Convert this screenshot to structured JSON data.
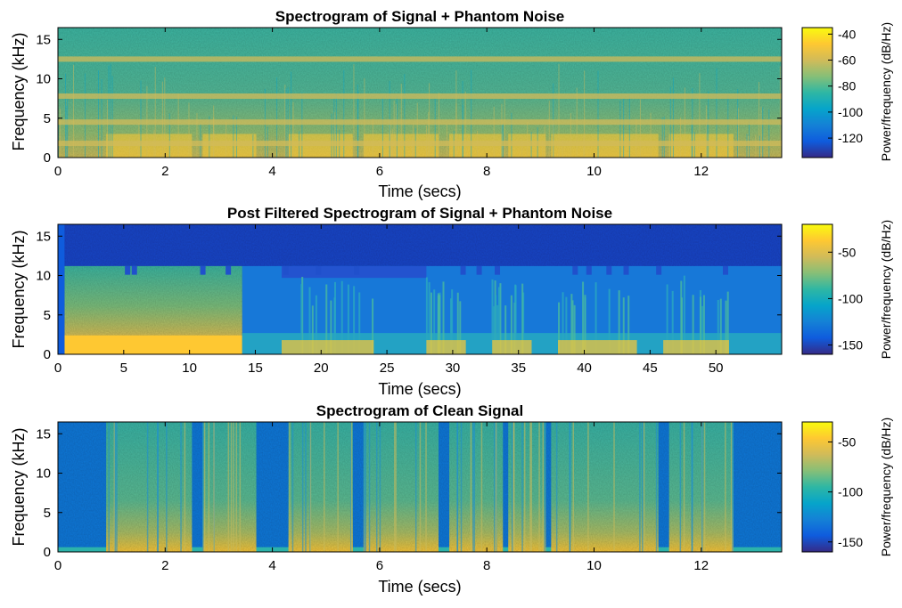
{
  "chart_data": [
    {
      "type": "heatmap",
      "title": "Spectrogram of Signal + Phantom Noise",
      "xlabel": "Time (secs)",
      "ylabel": "Frequency (kHz)",
      "xlim": [
        0,
        13.5
      ],
      "ylim": [
        0,
        16.5
      ],
      "xticks": [
        0,
        2,
        4,
        6,
        8,
        10,
        12
      ],
      "yticks": [
        0,
        5,
        10,
        15
      ],
      "colorbar": {
        "label": "Power/frequency (dB/Hz)",
        "range": [
          -135,
          -35
        ],
        "ticks": [
          -40,
          -60,
          -80,
          -100,
          -120
        ]
      },
      "noise_bands_khz": [
        1.8,
        4.5,
        7.8,
        12.5
      ],
      "speech_segments_secs": [
        [
          0.9,
          2.5
        ],
        [
          2.7,
          3.7
        ],
        [
          4.3,
          5.5
        ],
        [
          5.7,
          7.1
        ],
        [
          7.3,
          8.3
        ],
        [
          8.4,
          9.1
        ],
        [
          9.2,
          11.2
        ],
        [
          11.4,
          12.6
        ]
      ]
    },
    {
      "type": "heatmap",
      "title": "Post Filtered Spectrogram of Signal + Phantom Noise",
      "xlabel": "Time (secs)",
      "ylabel": "Frequency (kHz)",
      "xlim": [
        0,
        55
      ],
      "ylim": [
        0,
        16.5
      ],
      "xticks": [
        0,
        5,
        10,
        15,
        20,
        25,
        30,
        35,
        40,
        45,
        50
      ],
      "yticks": [
        0,
        5,
        10,
        15
      ],
      "colorbar": {
        "label": "Power/frequency (dB/Hz)",
        "range": [
          -160,
          -20
        ],
        "ticks": [
          -50,
          -100,
          -150
        ]
      },
      "filter_cutoff_khz": 11.2,
      "high_power_region_secs": [
        0.5,
        14
      ],
      "speech_segments_secs": [
        [
          17,
          24
        ],
        [
          28,
          31
        ],
        [
          33,
          36
        ],
        [
          38,
          44
        ],
        [
          46,
          51
        ]
      ]
    },
    {
      "type": "heatmap",
      "title": "Spectrogram of Clean Signal",
      "xlabel": "Time (secs)",
      "ylabel": "Frequency (kHz)",
      "xlim": [
        0,
        13.5
      ],
      "ylim": [
        0,
        16.5
      ],
      "xticks": [
        0,
        2,
        4,
        6,
        8,
        10,
        12
      ],
      "yticks": [
        0,
        5,
        10,
        15
      ],
      "colorbar": {
        "label": "Power/frequency (dB/Hz)",
        "range": [
          -160,
          -30
        ],
        "ticks": [
          -50,
          -100,
          -150
        ]
      },
      "speech_segments_secs": [
        [
          0.9,
          2.5
        ],
        [
          2.7,
          3.7
        ],
        [
          4.3,
          5.5
        ],
        [
          5.7,
          7.1
        ],
        [
          7.3,
          8.3
        ],
        [
          8.4,
          9.1
        ],
        [
          9.2,
          11.2
        ],
        [
          11.4,
          12.6
        ]
      ]
    }
  ],
  "colors": {
    "parula": [
      "#352a87",
      "#0f5cdd",
      "#1481d6",
      "#06a4ca",
      "#2eb7a4",
      "#87bf77",
      "#d1bb59",
      "#fec832",
      "#f9fb0e"
    ]
  }
}
